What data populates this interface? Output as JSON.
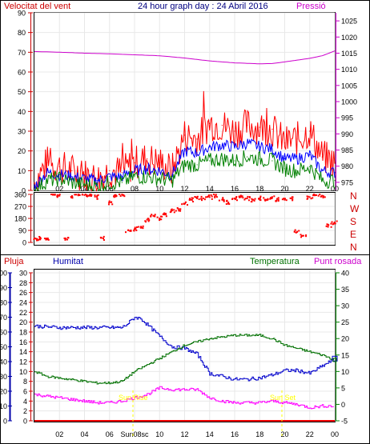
{
  "header": {
    "left_label": "Velocitat del vent",
    "title": "24 hour graph day : 24 Abril 2016",
    "right_label": "Pressió"
  },
  "middle": {
    "dir_labels": [
      "N",
      "W",
      "S",
      "E",
      "N"
    ]
  },
  "footer_header": {
    "pluja": "Pluja",
    "humitat": "Humitat",
    "temperatura": "Temperatura",
    "punt_rosada": "Punt rosada"
  },
  "annotations": {
    "sunrise": "Sun Rise",
    "sunset": "Sun Set",
    "sunrise_tick": "Sun08sc"
  },
  "colors": {
    "wind": "#ff0000",
    "wind_avg": "#0000ff",
    "wind_low": "#008000",
    "pressure": "#cc00cc",
    "humidity": "#0000cc",
    "temperature": "#007000",
    "dewpoint": "#ff00ff",
    "rain": "#ff0000",
    "annot": "#ffff00"
  },
  "chart_data": [
    {
      "type": "line",
      "name": "wind-pressure",
      "x_ticks": [
        "02",
        "04",
        "06",
        "08",
        "10",
        "12",
        "14",
        "16",
        "18",
        "20",
        "22",
        "00"
      ],
      "y_left_ticks": [
        0,
        10,
        20,
        30,
        40,
        50,
        60,
        70,
        80,
        90
      ],
      "y_right_ticks": [
        975,
        980,
        985,
        990,
        995,
        1000,
        1005,
        1010,
        1015,
        1020,
        1025
      ],
      "ylim_left": [
        0,
        90
      ],
      "ylim_right": [
        972.5,
        1027.5
      ],
      "series": [
        {
          "role": "gust",
          "x": [
            0,
            1,
            2,
            3,
            4,
            5,
            6,
            7,
            8,
            9,
            10,
            11,
            12,
            13,
            14,
            15,
            16,
            17,
            18,
            19,
            20,
            21,
            22,
            23,
            24
          ],
          "values": [
            4,
            14,
            12,
            10,
            8,
            6,
            10,
            9,
            14,
            16,
            14,
            10,
            28,
            26,
            34,
            33,
            30,
            33,
            32,
            31,
            24,
            26,
            30,
            17,
            14
          ]
        },
        {
          "role": "average",
          "x": [
            0,
            1,
            2,
            3,
            4,
            5,
            6,
            7,
            8,
            9,
            10,
            11,
            12,
            13,
            14,
            15,
            16,
            17,
            18,
            19,
            20,
            21,
            22,
            23,
            24
          ],
          "values": [
            2,
            9,
            8,
            7,
            6,
            5,
            7,
            7,
            10,
            11,
            10,
            8,
            20,
            19,
            22,
            23,
            22,
            24,
            22,
            21,
            16,
            16,
            18,
            10,
            9
          ]
        },
        {
          "role": "low",
          "x": [
            0,
            1,
            2,
            3,
            4,
            5,
            6,
            7,
            8,
            9,
            10,
            11,
            12,
            13,
            14,
            15,
            16,
            17,
            18,
            19,
            20,
            21,
            22,
            23,
            24
          ],
          "values": [
            0,
            5,
            6,
            4,
            3,
            2,
            4,
            4,
            7,
            7,
            6,
            5,
            13,
            13,
            15,
            16,
            15,
            17,
            16,
            15,
            11,
            10,
            12,
            5,
            5
          ]
        },
        {
          "role": "pressure",
          "x": [
            0,
            2,
            4,
            6,
            8,
            10,
            12,
            14,
            16,
            18,
            19,
            20,
            22,
            23,
            24
          ],
          "values": [
            1015.5,
            1015.3,
            1015.0,
            1014.8,
            1014.5,
            1014.2,
            1013.5,
            1012.6,
            1012.0,
            1011.7,
            1011.8,
            1012.3,
            1013.4,
            1014.2,
            1015.7
          ]
        }
      ]
    },
    {
      "type": "scatter",
      "name": "wind-direction",
      "y_ticks": [
        0,
        90,
        180,
        270,
        360
      ],
      "ylim": [
        0,
        360
      ],
      "x": [
        0,
        0.5,
        1,
        1.5,
        2,
        2.5,
        3,
        3.5,
        4,
        4.5,
        5,
        5.5,
        6,
        6.5,
        7,
        7.5,
        8,
        8.5,
        9,
        9.5,
        10,
        10.5,
        11,
        11.5,
        12,
        12.5,
        13,
        13.5,
        14,
        14.5,
        15,
        15.5,
        16,
        16.5,
        17,
        17.5,
        18,
        18.5,
        19,
        19.5,
        20,
        20.5,
        21,
        21.5,
        22,
        22.5,
        23,
        23.5,
        24
      ],
      "values": [
        30,
        30,
        30,
        360,
        350,
        30,
        345,
        360,
        355,
        360,
        340,
        30,
        300,
        355,
        360,
        90,
        100,
        110,
        170,
        200,
        180,
        210,
        240,
        250,
        290,
        320,
        330,
        330,
        340,
        350,
        320,
        300,
        330,
        340,
        330,
        320,
        330,
        320,
        340,
        320,
        320,
        330,
        80,
        50,
        340,
        355,
        350,
        130,
        150
      ]
    },
    {
      "type": "line",
      "name": "humidity-temperature",
      "y_left_ticks": [
        0,
        10,
        20,
        30,
        40,
        50,
        60,
        70,
        80,
        90,
        100
      ],
      "rain_ticks": [
        0,
        2,
        4,
        6,
        8,
        10,
        12,
        14,
        16,
        18,
        20,
        22,
        24,
        26,
        28,
        30
      ],
      "y_right_ticks": [
        -5,
        0,
        5,
        10,
        15,
        20,
        25,
        30,
        35,
        40
      ],
      "ylim_left": [
        0,
        100
      ],
      "ylim_right": [
        -5,
        40
      ],
      "series": [
        {
          "role": "humidity",
          "x": [
            0,
            2,
            4,
            6,
            7,
            7.5,
            8,
            8.5,
            9,
            10,
            11,
            12,
            13,
            14,
            15,
            16,
            17,
            18,
            19,
            20,
            21,
            22,
            23,
            24
          ],
          "values": [
            64,
            63,
            63,
            63,
            63,
            66,
            70,
            69,
            65,
            57,
            50,
            49,
            45,
            32,
            30,
            28,
            28,
            29,
            31,
            34,
            34,
            32,
            37,
            42
          ]
        },
        {
          "role": "temperature",
          "x": [
            0,
            1,
            2,
            3,
            4,
            5,
            6,
            7,
            8,
            9,
            10,
            11,
            12,
            13,
            14,
            15,
            16,
            17,
            18,
            19,
            20,
            21,
            22,
            23,
            24
          ],
          "values": [
            10,
            8.5,
            8,
            7.5,
            7,
            6.5,
            6.5,
            7,
            10,
            12,
            14,
            16,
            18,
            19,
            20,
            20.5,
            21,
            21,
            21,
            20,
            18,
            17,
            16,
            15,
            13.5
          ]
        },
        {
          "role": "dewpoint",
          "x": [
            0,
            1,
            2,
            3,
            4,
            5,
            6,
            7,
            8,
            9,
            10,
            11,
            12,
            13,
            14,
            15,
            16,
            17,
            18,
            19,
            20,
            21,
            22,
            23,
            24
          ],
          "values": [
            3,
            2.5,
            2,
            1.5,
            1,
            0.5,
            0.5,
            1,
            2,
            3,
            5,
            4.5,
            4.5,
            4.5,
            2,
            1,
            0.5,
            0.5,
            0.5,
            1,
            0.5,
            0,
            -1,
            -0.5,
            -0.5
          ]
        }
      ]
    }
  ]
}
